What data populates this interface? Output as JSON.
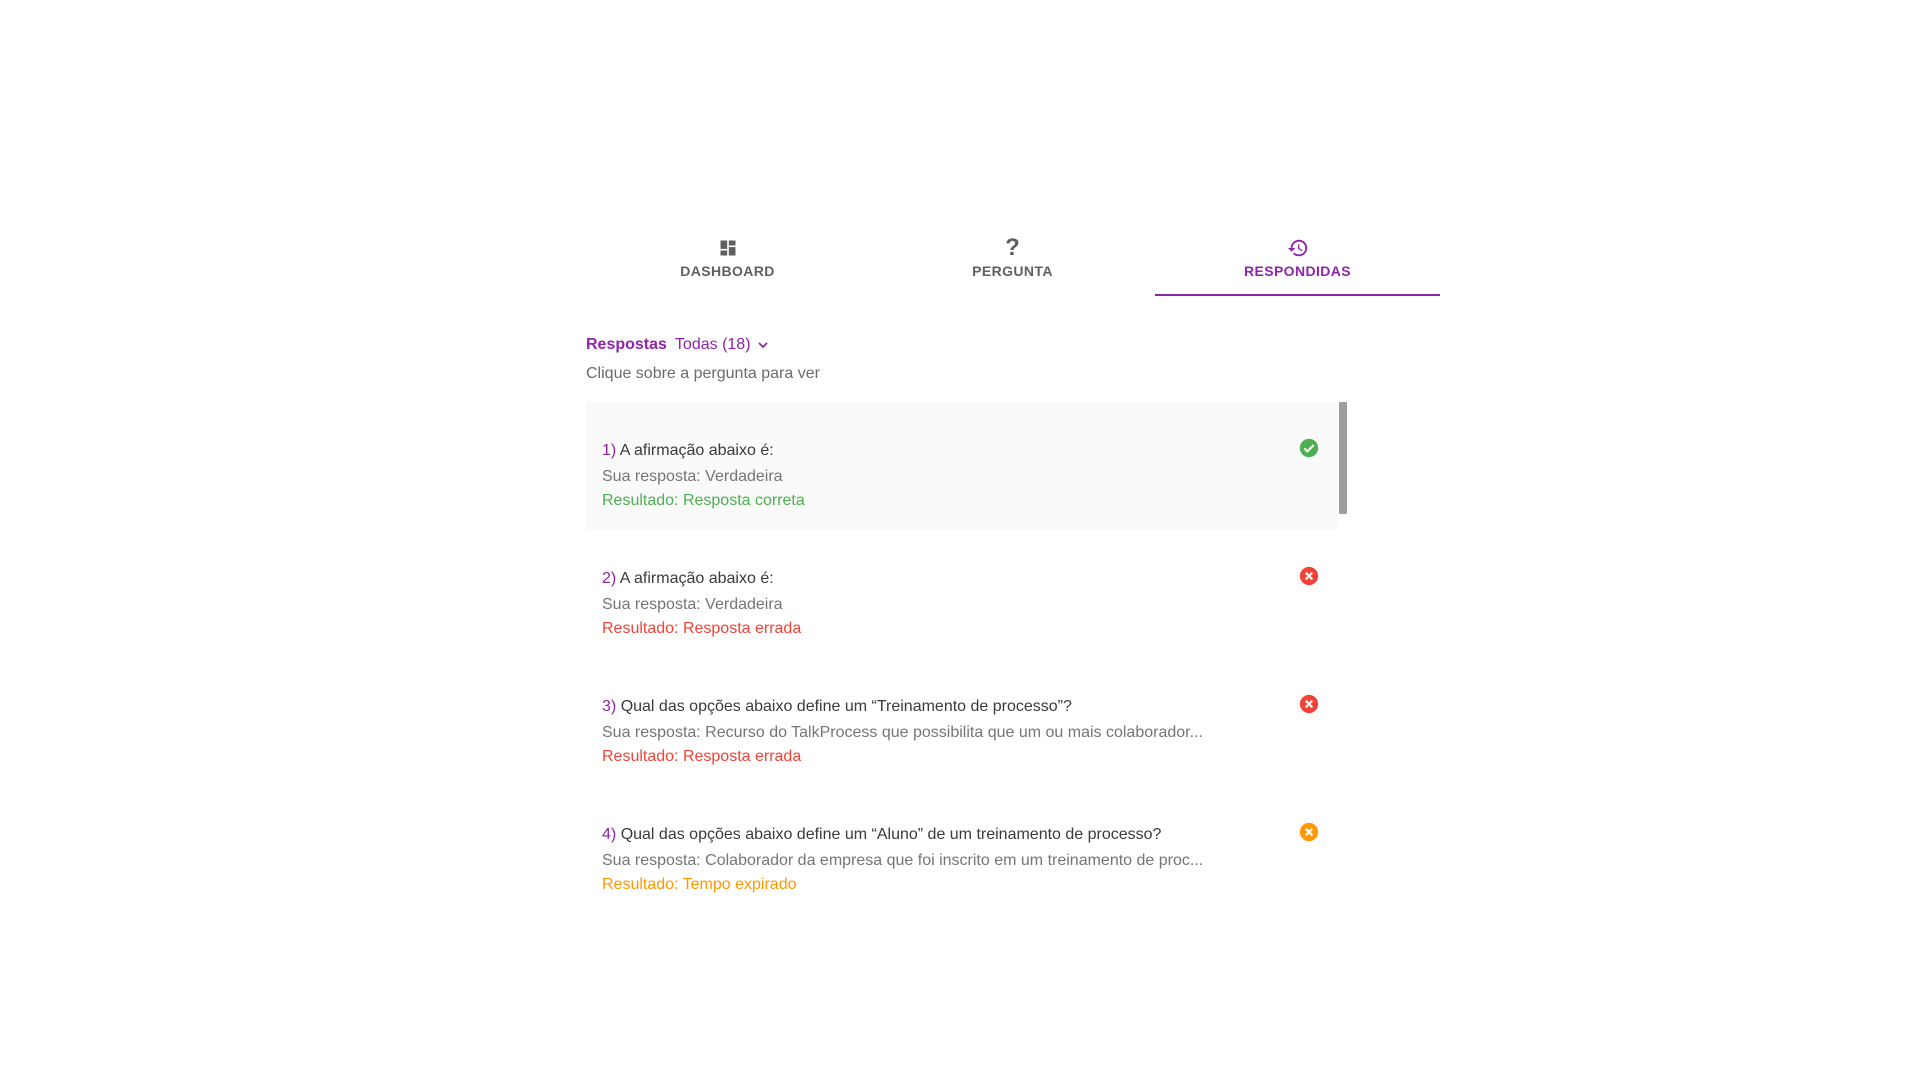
{
  "tabs": [
    {
      "label": "DASHBOARD",
      "icon": "dashboard-icon"
    },
    {
      "label": "PERGUNTA",
      "icon": "help-icon"
    },
    {
      "label": "RESPONDIDAS",
      "icon": "history-icon",
      "active": true
    }
  ],
  "header": {
    "title": "Respostas",
    "filter": "Todas (18)",
    "hint": "Clique sobre a pergunta para ver"
  },
  "items": [
    {
      "num": "1)",
      "question": "A afirmação abaixo é:",
      "answer": "Sua resposta: Verdadeira",
      "result": "Resultado: Resposta correta",
      "status": "correct"
    },
    {
      "num": "2)",
      "question": "A afirmação abaixo é:",
      "answer": "Sua resposta: Verdadeira",
      "result": "Resultado: Resposta errada",
      "status": "wrong"
    },
    {
      "num": "3)",
      "question": "Qual das opções abaixo define um “Treinamento de processo”?",
      "answer": "Sua resposta: Recurso do TalkProcess que possibilita que um ou mais colaborador...",
      "result": "Resultado: Resposta errada",
      "status": "wrong"
    },
    {
      "num": "4)",
      "question": "Qual das opções abaixo define um “Aluno” de um treinamento de processo?",
      "answer": "Sua resposta: Colaborador da empresa que foi inscrito em um treinamento de proc...",
      "result": "Resultado: Tempo expirado",
      "status": "timeout"
    }
  ],
  "colors": {
    "accent": "#8e24aa",
    "correct": "#4caf50",
    "wrong": "#f44336",
    "timeout": "#ff9800"
  }
}
